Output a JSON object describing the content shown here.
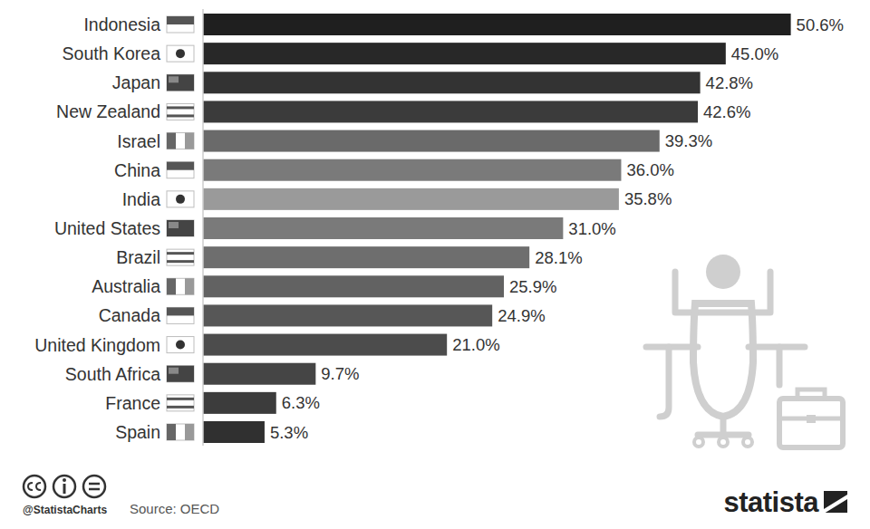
{
  "chart_data": {
    "type": "bar",
    "orientation": "horizontal",
    "categories": [
      "Indonesia",
      "South Korea",
      "Japan",
      "New Zealand",
      "Israel",
      "China",
      "India",
      "United States",
      "Brazil",
      "Australia",
      "Canada",
      "United Kingdom",
      "South Africa",
      "France",
      "Spain"
    ],
    "values": [
      50.6,
      45.0,
      42.8,
      42.6,
      39.3,
      36.0,
      35.8,
      31.0,
      28.1,
      25.9,
      24.9,
      21.0,
      9.7,
      6.3,
      5.3
    ],
    "value_labels": [
      "50.6%",
      "45.0%",
      "42.8%",
      "42.6%",
      "39.3%",
      "36.0%",
      "35.8%",
      "31.0%",
      "28.1%",
      "25.9%",
      "24.9%",
      "21.0%",
      "9.7%",
      "6.3%",
      "5.3%"
    ],
    "colors": [
      "#1f1f1f",
      "#282828",
      "#333333",
      "#3b3b3b",
      "#6a6a6a",
      "#7a7a7a",
      "#9a9a9a",
      "#7a7a7a",
      "#6e6e6e",
      "#626262",
      "#575757",
      "#4c4c4c",
      "#454545",
      "#3c3c3c",
      "#303030"
    ],
    "xlim": [
      0,
      55
    ],
    "data_labels": true,
    "tick_labels": "y",
    "grid": false,
    "annotations": [
      "@StatistaCharts",
      "Source: OECD",
      "statista"
    ]
  }
}
